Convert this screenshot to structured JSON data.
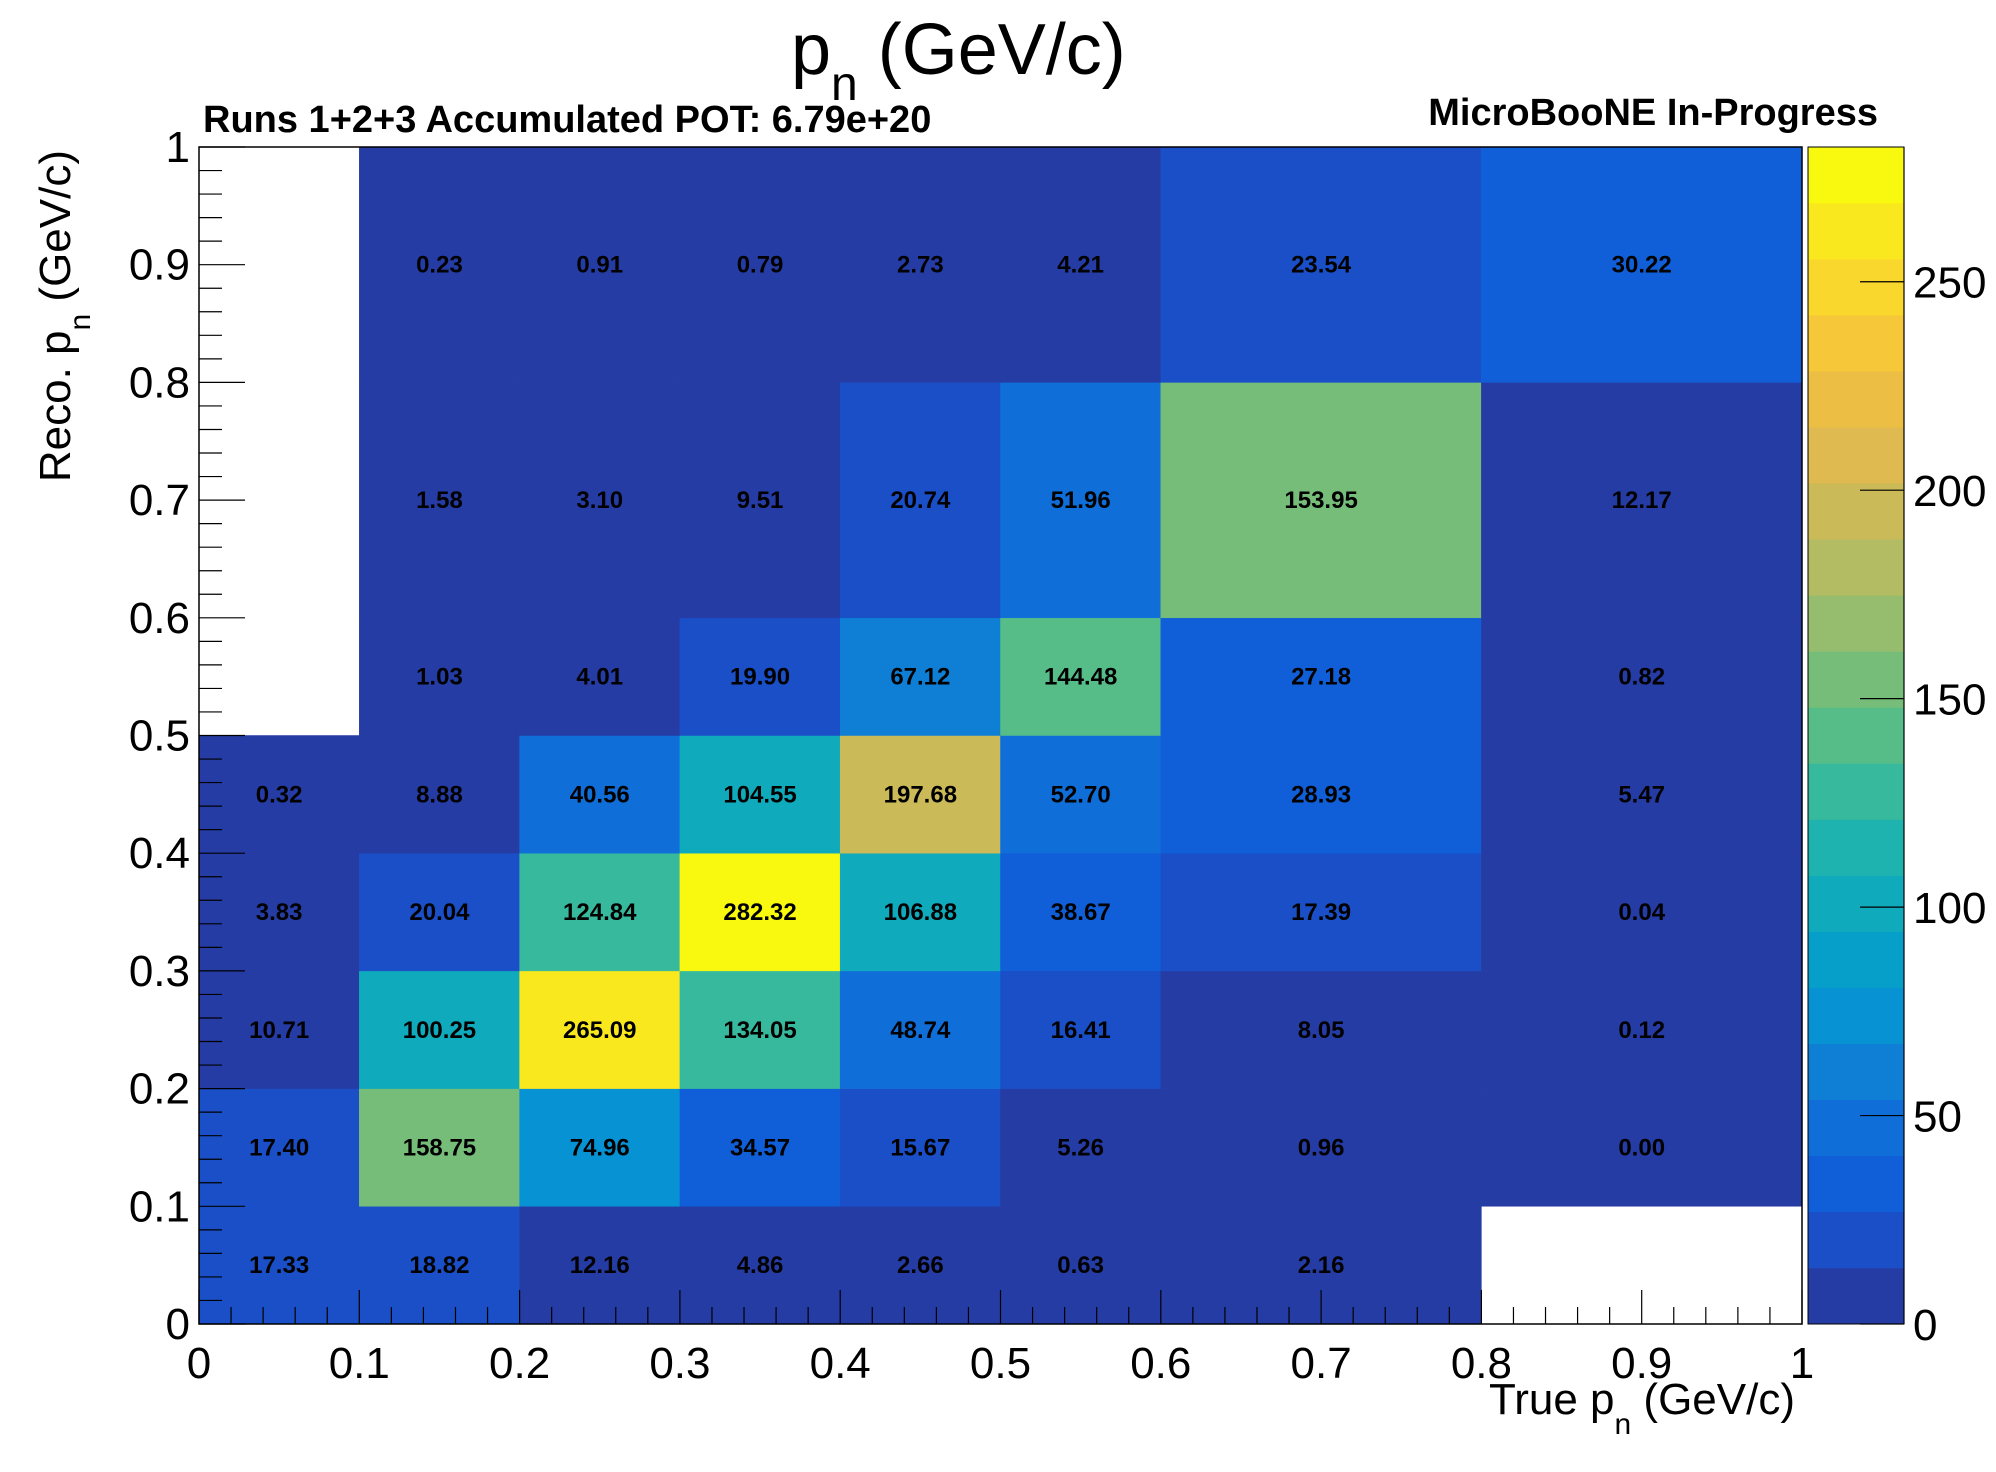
{
  "page": {
    "title_main": "p",
    "title_sub": "n",
    "title_unit": " (GeV/c)",
    "left_annotation": "Runs 1+2+3 Accumulated POT: 6.79e+20",
    "right_annotation": "MicroBooNE In-Progress"
  },
  "chart_data": {
    "type": "heatmap",
    "xlabel_main": "True p",
    "xlabel_sub": "n",
    "xlabel_unit": " (GeV/c)",
    "ylabel_main": "Reco. p",
    "ylabel_sub": "n",
    "ylabel_unit": " (GeV/c)",
    "x_edges": [
      0,
      0.1,
      0.2,
      0.3,
      0.4,
      0.5,
      0.6,
      0.8,
      1.0
    ],
    "y_edges": [
      0,
      0.1,
      0.2,
      0.3,
      0.4,
      0.5,
      0.6,
      0.8,
      1.0
    ],
    "xlim": [
      0,
      1
    ],
    "ylim": [
      0,
      1
    ],
    "x_tick_labels": [
      "0",
      "0.1",
      "0.2",
      "0.3",
      "0.4",
      "0.5",
      "0.6",
      "0.7",
      "0.8",
      "0.9",
      "1"
    ],
    "y_tick_labels": [
      "0",
      "0.1",
      "0.2",
      "0.3",
      "0.4",
      "0.5",
      "0.6",
      "0.7",
      "0.8",
      "0.9",
      "1"
    ],
    "values": [
      [
        17.33,
        18.82,
        12.16,
        4.86,
        2.66,
        0.63,
        2.16,
        null
      ],
      [
        17.4,
        158.75,
        74.96,
        34.57,
        15.67,
        5.26,
        0.96,
        0.0
      ],
      [
        10.71,
        100.25,
        265.09,
        134.05,
        48.74,
        16.41,
        8.05,
        0.12
      ],
      [
        3.83,
        20.04,
        124.84,
        282.32,
        106.88,
        38.67,
        17.39,
        0.04
      ],
      [
        0.32,
        8.88,
        40.56,
        104.55,
        197.68,
        52.7,
        28.93,
        5.47
      ],
      [
        null,
        1.03,
        4.01,
        19.9,
        67.12,
        144.48,
        27.18,
        0.82
      ],
      [
        null,
        1.58,
        3.1,
        9.51,
        20.74,
        51.96,
        153.95,
        12.17
      ],
      [
        null,
        0.23,
        0.91,
        0.79,
        2.73,
        4.21,
        23.54,
        30.22
      ]
    ],
    "value_labels": [
      [
        "17.33",
        "18.82",
        "12.16",
        "4.86",
        "2.66",
        "0.63",
        "2.16",
        ""
      ],
      [
        "17.40",
        "158.75",
        "74.96",
        "34.57",
        "15.67",
        "5.26",
        "0.96",
        "0.00"
      ],
      [
        "10.71",
        "100.25",
        "265.09",
        "134.05",
        "48.74",
        "16.41",
        "8.05",
        "0.12"
      ],
      [
        "3.83",
        "20.04",
        "124.84",
        "282.32",
        "106.88",
        "38.67",
        "17.39",
        "0.04"
      ],
      [
        "0.32",
        "8.88",
        "40.56",
        "104.55",
        "197.68",
        "52.70",
        "28.93",
        "5.47"
      ],
      [
        "",
        "1.03",
        "4.01",
        "19.90",
        "67.12",
        "144.48",
        "27.18",
        "0.82"
      ],
      [
        "",
        "1.58",
        "3.10",
        "9.51",
        "20.74",
        "51.96",
        "153.95",
        "12.17"
      ],
      [
        "",
        "0.23",
        "0.91",
        "0.79",
        "2.73",
        "4.21",
        "23.54",
        "30.22"
      ]
    ],
    "colorbar": {
      "min": 0,
      "max": 282.32,
      "tick_values": [
        0,
        50,
        100,
        150,
        200,
        250
      ],
      "tick_labels": [
        "0",
        "50",
        "100",
        "150",
        "200",
        "250"
      ],
      "colors": [
        "#263ca5",
        "#1a4fc8",
        "#105fd8",
        "#106ed9",
        "#0f7fd6",
        "#0793d3",
        "#069fc9",
        "#10aabd",
        "#1eb3ae",
        "#36b99c",
        "#56bd89",
        "#76bd79",
        "#96bd6d",
        "#b3bc62",
        "#cbba58",
        "#dfba50",
        "#ecbf44",
        "#f6c738",
        "#fad72c",
        "#f9e81d",
        "#f9f90f"
      ]
    },
    "grid": false
  }
}
